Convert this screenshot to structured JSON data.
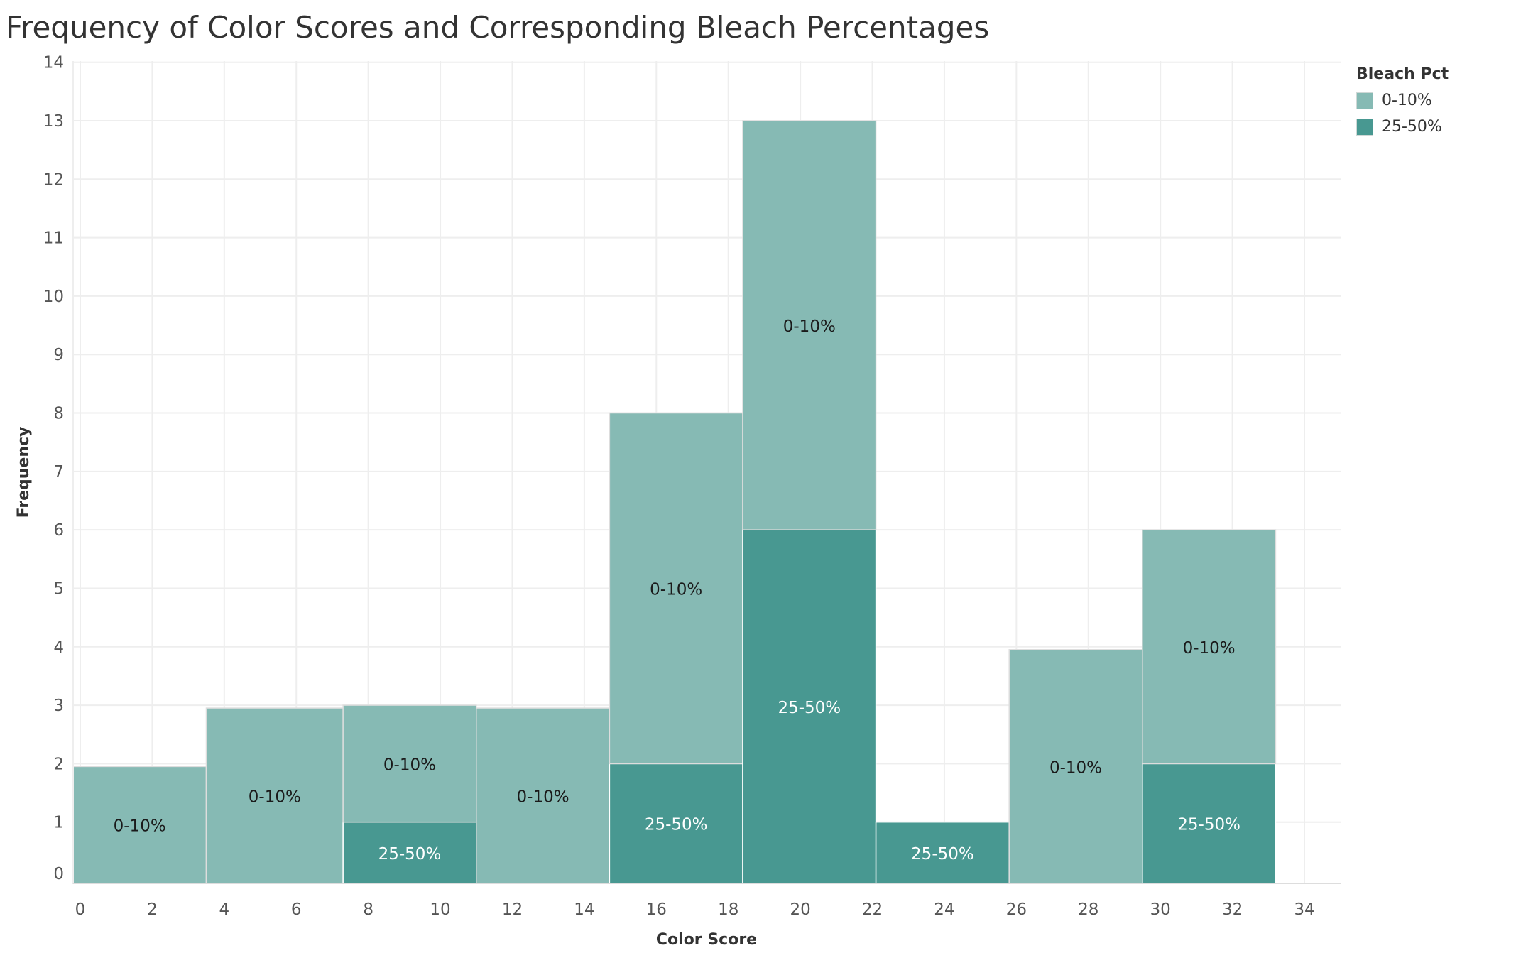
{
  "title": "Frequency of Color Scores and Corresponding Bleach Percentages",
  "colors": {
    "bleach_0_10": "#86bab4",
    "bleach_25_50": "#489891",
    "grid": "#eeeeee",
    "text": "#555555"
  },
  "legend": {
    "title": "Bleach Pct",
    "items": [
      {
        "label": "0-10%",
        "color": "#86bab4"
      },
      {
        "label": "25-50%",
        "color": "#489891"
      }
    ]
  },
  "chart_data": {
    "type": "bar",
    "subtype": "stacked histogram",
    "xlabel": "Color Score",
    "ylabel": "Frequency",
    "xlim": [
      0,
      35
    ],
    "ylim": [
      0,
      14
    ],
    "xticks": [
      0,
      2,
      4,
      6,
      8,
      10,
      12,
      14,
      16,
      18,
      20,
      22,
      24,
      26,
      28,
      30,
      32,
      34
    ],
    "yticks": [
      0,
      1,
      2,
      3,
      4,
      5,
      6,
      7,
      8,
      9,
      10,
      11,
      12,
      13,
      14
    ],
    "bins": [
      [
        -0.2,
        3.5
      ],
      [
        3.5,
        7.3
      ],
      [
        7.3,
        11.0
      ],
      [
        11.0,
        14.7
      ],
      [
        14.7,
        18.4
      ],
      [
        18.4,
        22.1
      ],
      [
        22.1,
        25.8
      ],
      [
        25.8,
        29.5
      ],
      [
        29.5,
        33.2
      ]
    ],
    "series": [
      {
        "name": "25-50%",
        "values": [
          0,
          0,
          1,
          0,
          2,
          6,
          1,
          0,
          2
        ]
      },
      {
        "name": "0-10%",
        "values": [
          2,
          3,
          2,
          3,
          6,
          7,
          0,
          4,
          4
        ]
      }
    ],
    "grid": true,
    "legend_position": "top-right"
  }
}
